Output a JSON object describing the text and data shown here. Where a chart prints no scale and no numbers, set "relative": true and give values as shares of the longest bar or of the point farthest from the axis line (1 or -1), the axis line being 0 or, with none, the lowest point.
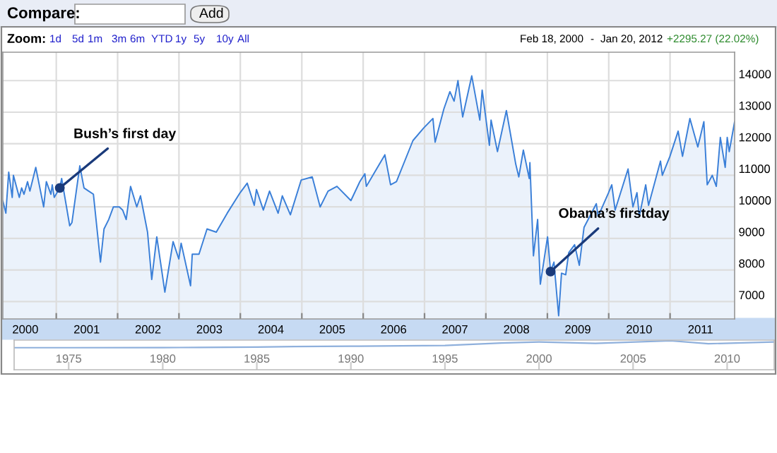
{
  "chart_data": [
    {
      "type": "area",
      "color": "#3a7fd8",
      "x": [
        "2000-02-18",
        "2000-03-07",
        "2000-03-24",
        "2000-04-14",
        "2000-04-21",
        "2000-05-26",
        "2000-06-09",
        "2000-06-23",
        "2000-07-14",
        "2000-07-28",
        "2000-09-01",
        "2000-10-18",
        "2000-11-03",
        "2000-11-30",
        "2000-12-08",
        "2000-12-20",
        "2001-01-22",
        "2001-02-02",
        "2001-03-22",
        "2001-04-04",
        "2001-05-21",
        "2001-06-15",
        "2001-07-13",
        "2001-08-10",
        "2001-09-21",
        "2001-10-12",
        "2001-11-09",
        "2001-12-07",
        "2001-12-21",
        "2002-01-11",
        "2002-01-31",
        "2002-02-21",
        "2002-03-19",
        "2002-04-25",
        "2002-05-17",
        "2002-06-28",
        "2002-07-23",
        "2002-08-22",
        "2002-09-20",
        "2002-10-09",
        "2002-11-27",
        "2002-12-31",
        "2003-01-14",
        "2003-03-11",
        "2003-03-21",
        "2003-04-30",
        "2003-06-17",
        "2003-08-11",
        "2003-10-15",
        "2003-12-31",
        "2004-02-11",
        "2004-03-24",
        "2004-04-06",
        "2004-05-17",
        "2004-06-23",
        "2004-08-13",
        "2004-09-07",
        "2004-10-25",
        "2004-12-28",
        "2005-03-04",
        "2005-04-20",
        "2005-06-06",
        "2005-07-29",
        "2005-10-20",
        "2005-12-12",
        "2006-01-11",
        "2006-01-20",
        "2006-05-10",
        "2006-06-13",
        "2006-07-18",
        "2006-10-24",
        "2006-12-27",
        "2007-02-20",
        "2007-03-05",
        "2007-04-26",
        "2007-06-01",
        "2007-06-26",
        "2007-07-19",
        "2007-08-16",
        "2007-10-09",
        "2007-11-26",
        "2007-12-10",
        "2008-01-22",
        "2008-02-01",
        "2008-03-10",
        "2008-05-02",
        "2008-06-27",
        "2008-07-15",
        "2008-08-11",
        "2008-09-15",
        "2008-09-19",
        "2008-10-10",
        "2008-11-04",
        "2008-11-20",
        "2009-01-02",
        "2009-01-20",
        "2009-02-09",
        "2009-03-09",
        "2009-03-26",
        "2009-04-20",
        "2009-05-08",
        "2009-06-12",
        "2009-07-10",
        "2009-08-07",
        "2009-10-19",
        "2009-10-30",
        "2009-12-31",
        "2010-01-19",
        "2010-02-08",
        "2010-04-26",
        "2010-05-25",
        "2010-06-18",
        "2010-07-02",
        "2010-08-09",
        "2010-08-26",
        "2010-11-05",
        "2010-11-16",
        "2010-12-31",
        "2011-02-18",
        "2011-03-16",
        "2011-04-29",
        "2011-06-15",
        "2011-07-21",
        "2011-08-10",
        "2011-09-09",
        "2011-10-03",
        "2011-10-27",
        "2011-11-25",
        "2011-12-07",
        "2011-12-19",
        "2012-01-20"
      ],
      "values": [
        10200,
        9800,
        11100,
        10300,
        11000,
        10300,
        10600,
        10400,
        10800,
        10500,
        11250,
        10000,
        10800,
        10400,
        10700,
        10300,
        10600,
        10900,
        9400,
        9500,
        11300,
        10600,
        10500,
        10400,
        8250,
        9300,
        9600,
        10000,
        10000,
        10000,
        9900,
        9600,
        10650,
        10000,
        10350,
        9200,
        7700,
        9050,
        8000,
        7300,
        8900,
        8350,
        8850,
        7500,
        8500,
        8500,
        9300,
        9200,
        9800,
        10450,
        10750,
        10050,
        10550,
        9900,
        10500,
        9800,
        10350,
        9750,
        10850,
        10950,
        10000,
        10500,
        10650,
        10200,
        10800,
        11050,
        10650,
        11650,
        10700,
        10800,
        12100,
        12500,
        12800,
        12050,
        13100,
        13650,
        13350,
        14000,
        12850,
        14150,
        12750,
        13700,
        11950,
        12750,
        11750,
        13050,
        11350,
        10950,
        11800,
        10900,
        11400,
        8450,
        9600,
        7550,
        9050,
        7950,
        8250,
        6550,
        7900,
        7850,
        8550,
        8800,
        8150,
        9350,
        10100,
        9700,
        10450,
        10700,
        9900,
        11200,
        10000,
        10450,
        9700,
        10700,
        10050,
        11450,
        11000,
        11600,
        12400,
        11600,
        12800,
        11900,
        12700,
        10700,
        11000,
        10650,
        12200,
        11250,
        12200,
        11750,
        12700
      ],
      "xlim": [
        "2000-02-18",
        "2012-01-20"
      ],
      "ylim": [
        6450,
        14900
      ],
      "yticks": [
        7000,
        8000,
        9000,
        10000,
        11000,
        12000,
        13000,
        14000
      ],
      "xticks": [
        {
          "value": "2001-01-01",
          "label": null
        },
        {
          "value": "2002-01-01",
          "label": null
        },
        {
          "value": "2003-01-01",
          "label": null
        },
        {
          "value": "2004-01-01",
          "label": null
        },
        {
          "value": "2005-01-01",
          "label": null
        },
        {
          "value": "2006-01-01",
          "label": null
        },
        {
          "value": "2007-01-01",
          "label": null
        },
        {
          "value": "2008-01-01",
          "label": null
        },
        {
          "value": "2009-01-01",
          "label": null
        },
        {
          "value": "2010-01-01",
          "label": null
        },
        {
          "value": "2011-01-01",
          "label": null
        },
        {
          "value": "2000-07-01",
          "label": "2000"
        },
        {
          "value": "2001-07-01",
          "label": "2001"
        },
        {
          "value": "2002-07-01",
          "label": "2002"
        },
        {
          "value": "2003-07-01",
          "label": "2003"
        },
        {
          "value": "2004-07-01",
          "label": "2004"
        },
        {
          "value": "2005-07-01",
          "label": "2005"
        },
        {
          "value": "2006-07-01",
          "label": "2006"
        },
        {
          "value": "2007-07-01",
          "label": "2007"
        },
        {
          "value": "2008-07-01",
          "label": "2008"
        },
        {
          "value": "2009-07-01",
          "label": "2009"
        },
        {
          "value": "2010-07-01",
          "label": "2010"
        },
        {
          "value": "2011-07-01",
          "label": "2011"
        }
      ],
      "grid": true,
      "annotations": [
        {
          "text": "Bush’s first day",
          "x": "2001-01-22",
          "y": 10600
        },
        {
          "text": "Obama’s firstday",
          "x": "2009-01-20",
          "y": 7950
        },
        "Compare:",
        "Add",
        "Zoom:",
        "1d",
        "5d",
        "1m",
        "3m",
        "6m",
        "YTD",
        "1y",
        "5y",
        "10y",
        "All",
        "Feb 18, 2000",
        "-",
        "Jan 20, 2012",
        "+2295.27 (22.02%)"
      ]
    },
    {
      "type": "line",
      "relative": true,
      "color": "#8fb0dc",
      "x": [
        1972.1,
        1975,
        1980,
        1982,
        1985,
        1987,
        1990,
        1995,
        1998,
        2000,
        2003,
        2007,
        2009,
        2012.5
      ],
      "values": [
        0,
        0,
        0.02,
        0.03,
        0.1,
        0.16,
        0.21,
        0.32,
        0.68,
        0.84,
        0.63,
        1,
        0.57,
        0.84
      ],
      "xlim": [
        1972.1,
        2012.5
      ],
      "xticks": [
        1975,
        1980,
        1985,
        1990,
        1995,
        2000,
        2005,
        2010
      ]
    }
  ]
}
